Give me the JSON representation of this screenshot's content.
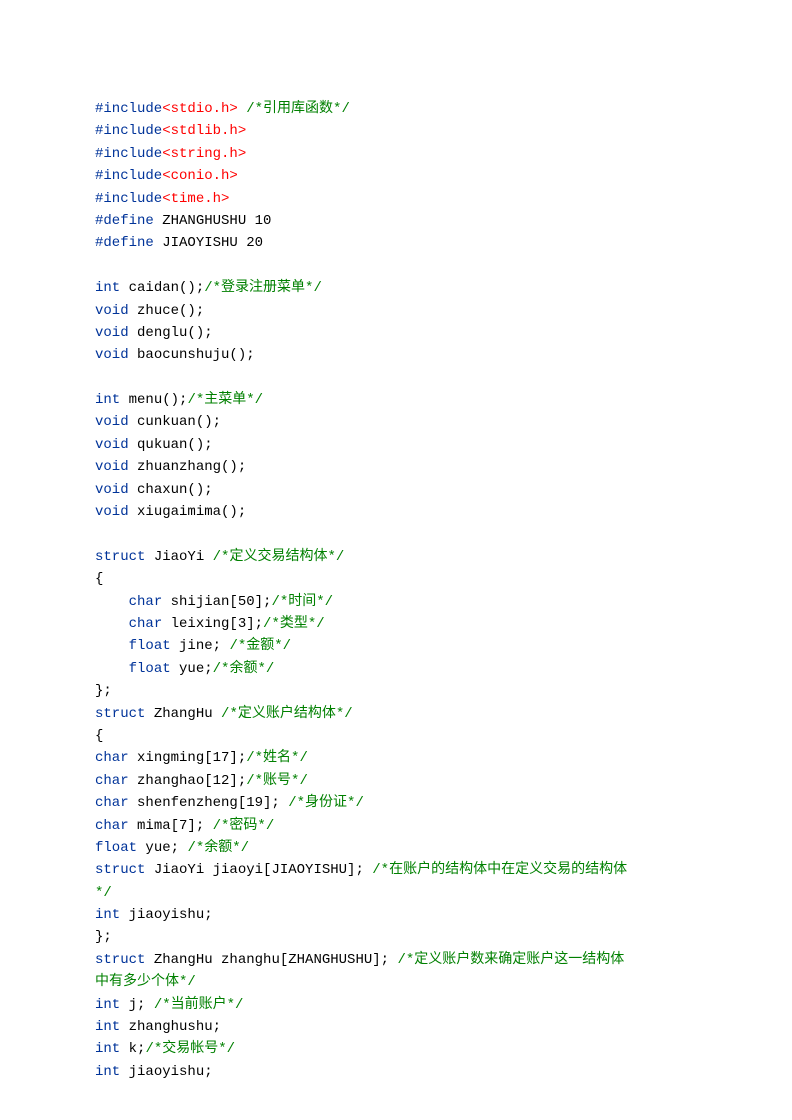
{
  "colors": {
    "keyword": "#003399",
    "include": "#ff0000",
    "comment": "#008000",
    "text": "#000000",
    "background": "#ffffff"
  },
  "typography": {
    "font_family": "Courier New",
    "font_size": 14,
    "line_height": 1.6
  },
  "lines": [
    [
      [
        "#include",
        "blue1"
      ],
      [
        "<stdio.h>",
        "red"
      ],
      [
        " ",
        "black"
      ],
      [
        "/*引用库函数*/",
        "green"
      ]
    ],
    [
      [
        "#include",
        "blue1"
      ],
      [
        "<stdlib.h>",
        "red"
      ]
    ],
    [
      [
        "#include",
        "blue1"
      ],
      [
        "<string.h>",
        "red"
      ]
    ],
    [
      [
        "#include",
        "blue1"
      ],
      [
        "<conio.h>",
        "red"
      ]
    ],
    [
      [
        "#include",
        "blue1"
      ],
      [
        "<time.h>",
        "red"
      ]
    ],
    [
      [
        "#define",
        "blue1"
      ],
      [
        " ZHANGHUSHU 10",
        "black"
      ]
    ],
    [
      [
        "#define",
        "blue1"
      ],
      [
        " JIAOYISHU 20",
        "black"
      ]
    ],
    [
      [
        "",
        "black"
      ]
    ],
    [
      [
        "int",
        "blue1"
      ],
      [
        " caidan();",
        "black"
      ],
      [
        "/*登录注册菜单*/",
        "green"
      ]
    ],
    [
      [
        "void",
        "blue1"
      ],
      [
        " zhuce();",
        "black"
      ]
    ],
    [
      [
        "void",
        "blue1"
      ],
      [
        " denglu();",
        "black"
      ]
    ],
    [
      [
        "void",
        "blue1"
      ],
      [
        " baocunshuju();",
        "black"
      ]
    ],
    [
      [
        "",
        "black"
      ]
    ],
    [
      [
        "int",
        "blue1"
      ],
      [
        " menu();",
        "black"
      ],
      [
        "/*主菜单*/",
        "green"
      ]
    ],
    [
      [
        "void",
        "blue1"
      ],
      [
        " cunkuan();",
        "black"
      ]
    ],
    [
      [
        "void",
        "blue1"
      ],
      [
        " qukuan();",
        "black"
      ]
    ],
    [
      [
        "void",
        "blue1"
      ],
      [
        " zhuanzhang();",
        "black"
      ]
    ],
    [
      [
        "void",
        "blue1"
      ],
      [
        " chaxun();",
        "black"
      ]
    ],
    [
      [
        "void",
        "blue1"
      ],
      [
        " xiugaimima();",
        "black"
      ]
    ],
    [
      [
        "",
        "black"
      ]
    ],
    [
      [
        "struct",
        "blue1"
      ],
      [
        " JiaoYi ",
        "black"
      ],
      [
        "/*定义交易结构体*/",
        "green"
      ]
    ],
    [
      [
        "{",
        "black"
      ]
    ],
    [
      [
        "    ",
        "black"
      ],
      [
        "char",
        "blue1"
      ],
      [
        " shijian[50];",
        "black"
      ],
      [
        "/*时间*/",
        "green"
      ]
    ],
    [
      [
        "    ",
        "black"
      ],
      [
        "char",
        "blue1"
      ],
      [
        " leixing[3];",
        "black"
      ],
      [
        "/*类型*/",
        "green"
      ]
    ],
    [
      [
        "    ",
        "black"
      ],
      [
        "float",
        "blue1"
      ],
      [
        " jine; ",
        "black"
      ],
      [
        "/*金额*/",
        "green"
      ]
    ],
    [
      [
        "    ",
        "black"
      ],
      [
        "float",
        "blue1"
      ],
      [
        " yue;",
        "black"
      ],
      [
        "/*余额*/",
        "green"
      ]
    ],
    [
      [
        "};",
        "black"
      ]
    ],
    [
      [
        "struct",
        "blue1"
      ],
      [
        " ZhangHu ",
        "black"
      ],
      [
        "/*定义账户结构体*/",
        "green"
      ]
    ],
    [
      [
        "{",
        "black"
      ]
    ],
    [
      [
        "char",
        "blue1"
      ],
      [
        " xingming[17];",
        "black"
      ],
      [
        "/*姓名*/",
        "green"
      ]
    ],
    [
      [
        "char",
        "blue1"
      ],
      [
        " zhanghao[12];",
        "black"
      ],
      [
        "/*账号*/",
        "green"
      ]
    ],
    [
      [
        "char",
        "blue1"
      ],
      [
        " shenfenzheng[19]; ",
        "black"
      ],
      [
        "/*身份证*/",
        "green"
      ]
    ],
    [
      [
        "char",
        "blue1"
      ],
      [
        " mima[7]; ",
        "black"
      ],
      [
        "/*密码*/",
        "green"
      ]
    ],
    [
      [
        "float",
        "blue1"
      ],
      [
        " yue; ",
        "black"
      ],
      [
        "/*余额*/",
        "green"
      ]
    ],
    [
      [
        "struct",
        "blue1"
      ],
      [
        " JiaoYi jiaoyi[JIAOYISHU]; ",
        "black"
      ],
      [
        "/*在账户的结构体中在定义交易的结构体",
        "green"
      ]
    ],
    [
      [
        "*/",
        "green"
      ]
    ],
    [
      [
        "int",
        "blue1"
      ],
      [
        " jiaoyishu;",
        "black"
      ]
    ],
    [
      [
        "};",
        "black"
      ]
    ],
    [
      [
        "struct",
        "blue1"
      ],
      [
        " ZhangHu zhanghu[ZHANGHUSHU]; ",
        "black"
      ],
      [
        "/*定义账户数来确定账户这一结构体",
        "green"
      ]
    ],
    [
      [
        "中有多少个体*/",
        "green"
      ]
    ],
    [
      [
        "int",
        "blue1"
      ],
      [
        " j; ",
        "black"
      ],
      [
        "/*当前账户*/",
        "green"
      ]
    ],
    [
      [
        "int",
        "blue1"
      ],
      [
        " zhanghushu;",
        "black"
      ]
    ],
    [
      [
        "int",
        "blue1"
      ],
      [
        " k;",
        "black"
      ],
      [
        "/*交易帐号*/",
        "green"
      ]
    ],
    [
      [
        "int",
        "blue1"
      ],
      [
        " jiaoyishu;",
        "black"
      ]
    ]
  ]
}
